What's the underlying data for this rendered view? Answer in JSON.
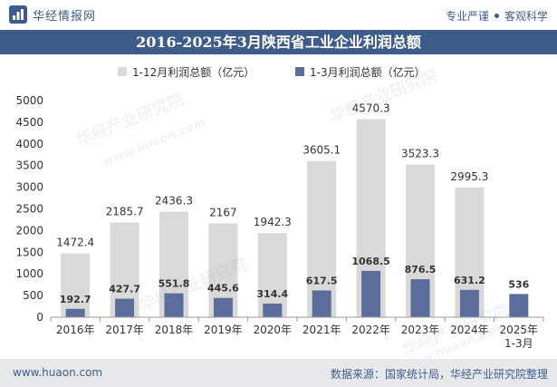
{
  "brand": {
    "name": "华经情报网"
  },
  "tagline": {
    "left": "专业严谨",
    "right": "客观科学"
  },
  "footer": {
    "site": "www.huaon.com",
    "source": "数据来源：国家统计局，华经产业研究院整理"
  },
  "watermark": {
    "text": "华经产业研究院",
    "url": "www.huaon.com"
  },
  "colors": {
    "header": "#3e5c8a",
    "annual": "#d9d9d9",
    "q1": "#5b6d9a",
    "axis": "#333333"
  },
  "icons": {
    "logo": "huajing-logo-icon"
  },
  "chart_data": {
    "type": "bar",
    "title": "2016-2025年3月陕西省工业企业利润总额",
    "xlabel": "",
    "ylabel": "",
    "categories": [
      "2016年",
      "2017年",
      "2018年",
      "2019年",
      "2020年",
      "2021年",
      "2022年",
      "2023年",
      "2024年",
      "2025年\n1-3月"
    ],
    "series": [
      {
        "name": "1-12月利润总额（亿元）",
        "values": [
          1472.4,
          2185.7,
          2436.3,
          2167,
          1942.3,
          3605.1,
          4570.3,
          3523.3,
          2995.3,
          null
        ],
        "labels": [
          "1472.4",
          "2185.7",
          "2436.3",
          "2167",
          "1942.3",
          "3605.1",
          "4570.3",
          "3523.3",
          "2995.3",
          ""
        ]
      },
      {
        "name": "1-3月利润总额（亿元）",
        "values": [
          192.7,
          427.7,
          551.8,
          445.6,
          314.4,
          617.5,
          1068.5,
          876.5,
          631.2,
          536
        ],
        "labels": [
          "192.7",
          "427.7",
          "551.8",
          "445.6",
          "314.4",
          "617.5",
          "1068.5",
          "876.5",
          "631.2",
          "536"
        ]
      }
    ],
    "ylim": [
      0,
      5000
    ],
    "yticks": [
      "0",
      "500",
      "1000",
      "1500",
      "2000",
      "2500",
      "3000",
      "3500",
      "4000",
      "4500",
      "5000"
    ],
    "legend": "top-center",
    "grid": false
  }
}
